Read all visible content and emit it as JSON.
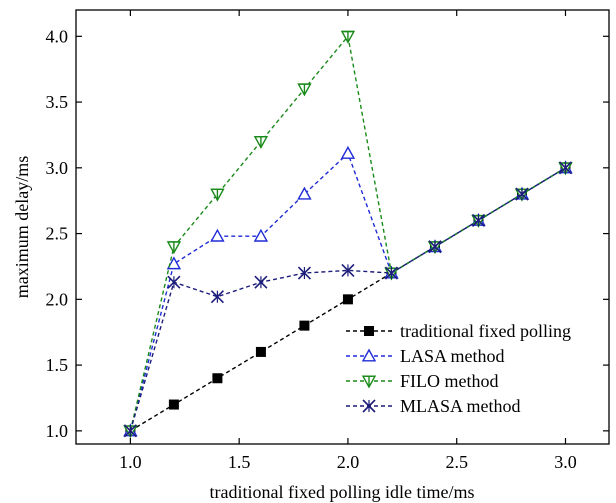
{
  "chart_data": {
    "type": "line",
    "title": "",
    "xlabel": "traditional fixed polling idle time/ms",
    "ylabel": "maximum delay/ms",
    "xlim": [
      0.75,
      3.2
    ],
    "ylim": [
      0.9,
      4.2
    ],
    "xticks": [
      1.0,
      1.5,
      2.0,
      2.5,
      3.0
    ],
    "xtick_labels": [
      "1.0",
      "1.5",
      "2.0",
      "2.5",
      "3.0"
    ],
    "yticks": [
      1.0,
      1.5,
      2.0,
      2.5,
      3.0,
      3.5,
      4.0
    ],
    "ytick_labels": [
      "1.0",
      "1.5",
      "2.0",
      "2.5",
      "3.0",
      "3.5",
      "4.0"
    ],
    "grid": false,
    "legend_position": "bottom-right",
    "series": [
      {
        "name": "traditional fixed polling",
        "color": "#000000",
        "marker": "square",
        "x": [
          1.0,
          1.2,
          1.4,
          1.6,
          1.8,
          2.0,
          2.2,
          2.4,
          2.6,
          2.8,
          3.0
        ],
        "values": [
          1.0,
          1.2,
          1.4,
          1.6,
          1.8,
          2.0,
          2.2,
          2.4,
          2.6,
          2.8,
          3.0
        ]
      },
      {
        "name": "LASA method",
        "color": "#1f2bd6",
        "marker": "triangle-up",
        "x": [
          1.0,
          1.2,
          1.4,
          1.6,
          1.8,
          2.0,
          2.2,
          2.4,
          2.6,
          2.8,
          3.0
        ],
        "values": [
          1.0,
          2.27,
          2.48,
          2.48,
          2.8,
          3.11,
          2.2,
          2.4,
          2.6,
          2.8,
          3.0
        ]
      },
      {
        "name": "FILO method",
        "color": "#1a8a1a",
        "marker": "triangle-down",
        "x": [
          1.0,
          1.2,
          1.4,
          1.6,
          1.8,
          2.0,
          2.2,
          2.4,
          2.6,
          2.8,
          3.0
        ],
        "values": [
          1.0,
          2.4,
          2.8,
          3.2,
          3.6,
          4.0,
          2.2,
          2.4,
          2.6,
          2.8,
          3.0
        ]
      },
      {
        "name": "MLASA method",
        "color": "#1c1c7a",
        "marker": "x-star",
        "x": [
          1.0,
          1.2,
          1.4,
          1.6,
          1.8,
          2.0,
          2.2,
          2.4,
          2.6,
          2.8,
          3.0
        ],
        "values": [
          1.0,
          2.13,
          2.02,
          2.13,
          2.2,
          2.22,
          2.2,
          2.4,
          2.6,
          2.8,
          3.0
        ]
      }
    ]
  }
}
